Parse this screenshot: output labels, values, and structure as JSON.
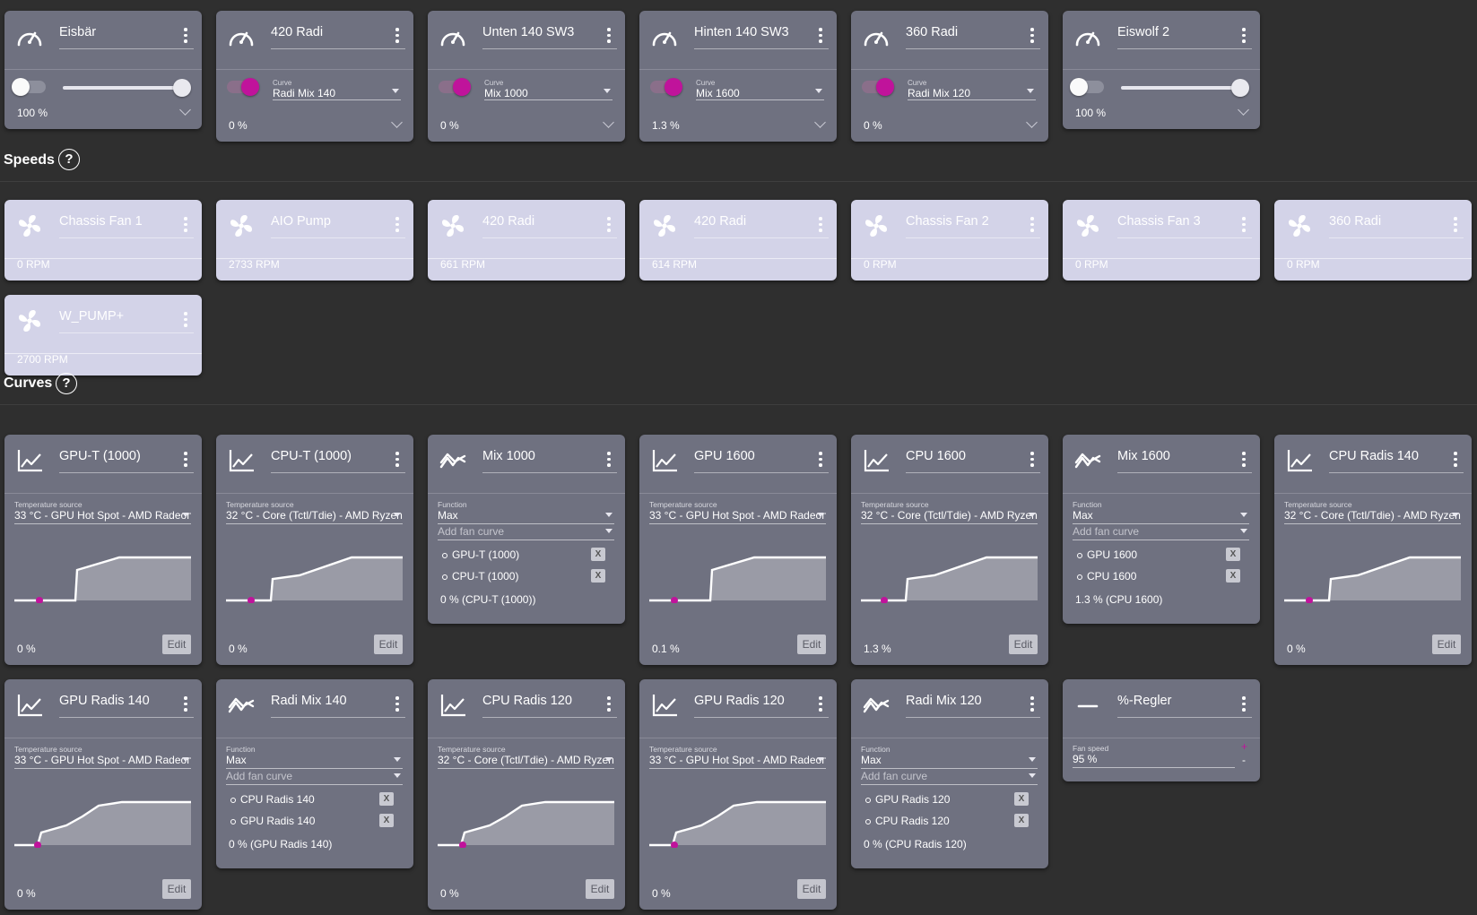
{
  "controls": [
    {
      "name": "Eisbär",
      "type": "manual",
      "percent": "100 %"
    },
    {
      "name": "420 Radi",
      "type": "curve",
      "curve_label": "Curve",
      "curve": "Radi Mix 140",
      "percent": "0 %"
    },
    {
      "name": "Unten 140 SW3",
      "type": "curve",
      "curve_label": "Curve",
      "curve": "Mix 1000",
      "percent": "0 %"
    },
    {
      "name": "Hinten 140 SW3",
      "type": "curve",
      "curve_label": "Curve",
      "curve": "Mix 1600",
      "percent": "1.3 %"
    },
    {
      "name": "360 Radi",
      "type": "curve",
      "curve_label": "Curve",
      "curve": "Radi Mix 120",
      "percent": "0 %"
    },
    {
      "name": "Eiswolf 2",
      "type": "manual",
      "percent": "100 %"
    }
  ],
  "speeds": {
    "title": "Speeds",
    "help": "?",
    "items": [
      {
        "name": "Chassis Fan 1",
        "rpm": "0 RPM"
      },
      {
        "name": "AIO Pump",
        "rpm": "2733 RPM"
      },
      {
        "name": "420 Radi",
        "rpm": "661 RPM"
      },
      {
        "name": "420 Radi",
        "rpm": "614 RPM"
      },
      {
        "name": "Chassis Fan 2",
        "rpm": "0 RPM"
      },
      {
        "name": "Chassis Fan 3",
        "rpm": "0 RPM"
      },
      {
        "name": "360 Radi",
        "rpm": "0 RPM"
      },
      {
        "name": "W_PUMP+",
        "rpm": "2700 RPM"
      }
    ]
  },
  "curves": {
    "title": "Curves",
    "help": "?",
    "edit_label": "Edit",
    "source_label": "Temperature source",
    "function_label": "Function",
    "add_placeholder": "Add fan curve",
    "remove_label": "X",
    "items": [
      {
        "type": "graph",
        "name": "GPU-T (1000)",
        "source": "33 °C - GPU Hot Spot - AMD Radeon",
        "percent": "0 %"
      },
      {
        "type": "graph",
        "name": "CPU-T (1000)",
        "source": "32 °C - Core (Tctl/Tdie) - AMD Ryzen",
        "percent": "0 %"
      },
      {
        "type": "mix",
        "name": "Mix 1000",
        "function": "Max",
        "members": [
          "GPU-T (1000)",
          "CPU-T (1000)"
        ],
        "result": "0 % (CPU-T (1000))"
      },
      {
        "type": "graph",
        "name": "GPU 1600",
        "source": "33 °C - GPU Hot Spot - AMD Radeon",
        "percent": "0.1 %"
      },
      {
        "type": "graph",
        "name": "CPU 1600",
        "source": "32 °C - Core (Tctl/Tdie) - AMD Ryzen",
        "percent": "1.3 %"
      },
      {
        "type": "mix",
        "name": "Mix 1600",
        "function": "Max",
        "members": [
          "GPU 1600",
          "CPU 1600"
        ],
        "result": "1.3 % (CPU 1600)"
      },
      {
        "type": "graph",
        "name": "CPU Radis 140",
        "source": "32 °C - Core (Tctl/Tdie) - AMD Ryzen",
        "percent": "0 %"
      },
      {
        "type": "graph",
        "name": "GPU Radis 140",
        "source": "33 °C - GPU Hot Spot - AMD Radeon",
        "percent": "0 %"
      },
      {
        "type": "mix",
        "name": "Radi Mix 140",
        "function": "Max",
        "members": [
          "CPU Radis 140",
          "GPU Radis 140"
        ],
        "result": "0 % (GPU Radis 140)"
      },
      {
        "type": "graph",
        "name": "CPU Radis 120",
        "source": "32 °C - Core (Tctl/Tdie) - AMD Ryzen",
        "percent": "0 %"
      },
      {
        "type": "graph",
        "name": "GPU Radis 120",
        "source": "33 °C - GPU Hot Spot - AMD Radeon",
        "percent": "0 %"
      },
      {
        "type": "mix",
        "name": "Radi Mix 120",
        "function": "Max",
        "members": [
          "GPU Radis 120",
          "CPU Radis 120"
        ],
        "result": "0 % (CPU Radis 120)"
      },
      {
        "type": "fixed",
        "name": "%-Regler",
        "speed_label": "Fan speed",
        "speed": "95 %",
        "plus": "+",
        "minus": "-"
      }
    ]
  },
  "colors": {
    "accent": "#c0139b",
    "card": "#6f7180",
    "speed_card": "#d3d3e8",
    "background": "#2f2f2f"
  }
}
